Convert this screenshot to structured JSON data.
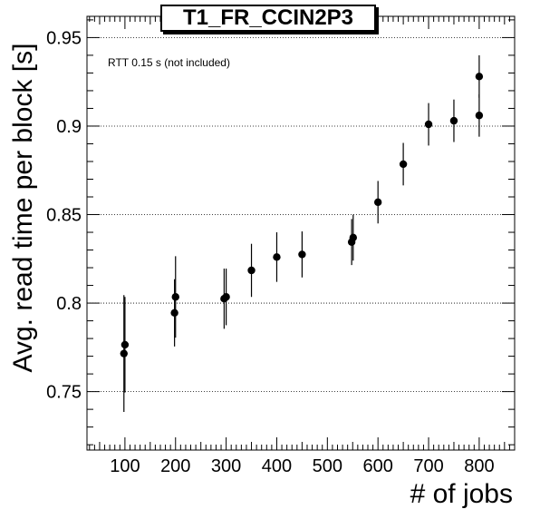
{
  "chart_data": {
    "type": "scatter",
    "title": "T1_FR_CCIN2P3",
    "xlabel": "# of jobs",
    "ylabel": "Avg. read time per block [s]",
    "annotation": "RTT 0.15 s (not included)",
    "xlim": [
      25,
      870
    ],
    "ylim": [
      0.717,
      0.962
    ],
    "x_ticks": [
      100,
      200,
      300,
      400,
      500,
      600,
      700,
      800
    ],
    "y_ticks": [
      0.75,
      0.8,
      0.85,
      0.9,
      0.95
    ],
    "y_tick_labels": [
      "0.75",
      "0.8",
      "0.85",
      "0.9",
      "0.95"
    ],
    "grid": "horizontal dotted at major y ticks",
    "marker_color": "#000000",
    "series": [
      {
        "points": [
          {
            "x": 98,
            "y": 0.7715,
            "err": 0.033
          },
          {
            "x": 100,
            "y": 0.7765,
            "err": 0.027
          },
          {
            "x": 198,
            "y": 0.7945,
            "err": 0.019
          },
          {
            "x": 200,
            "y": 0.8035,
            "err": 0.023
          },
          {
            "x": 296,
            "y": 0.8025,
            "err": 0.017
          },
          {
            "x": 300,
            "y": 0.8035,
            "err": 0.016
          },
          {
            "x": 350,
            "y": 0.8185,
            "err": 0.015
          },
          {
            "x": 400,
            "y": 0.826,
            "err": 0.014
          },
          {
            "x": 450,
            "y": 0.8275,
            "err": 0.013
          },
          {
            "x": 548,
            "y": 0.8345,
            "err": 0.013
          },
          {
            "x": 551,
            "y": 0.837,
            "err": 0.013
          },
          {
            "x": 600,
            "y": 0.857,
            "err": 0.012
          },
          {
            "x": 650,
            "y": 0.8785,
            "err": 0.012
          },
          {
            "x": 700,
            "y": 0.901,
            "err": 0.012
          },
          {
            "x": 750,
            "y": 0.903,
            "err": 0.012
          },
          {
            "x": 800,
            "y": 0.906,
            "err": 0.012
          },
          {
            "x": 800,
            "y": 0.928,
            "err": 0.012
          }
        ]
      }
    ]
  }
}
